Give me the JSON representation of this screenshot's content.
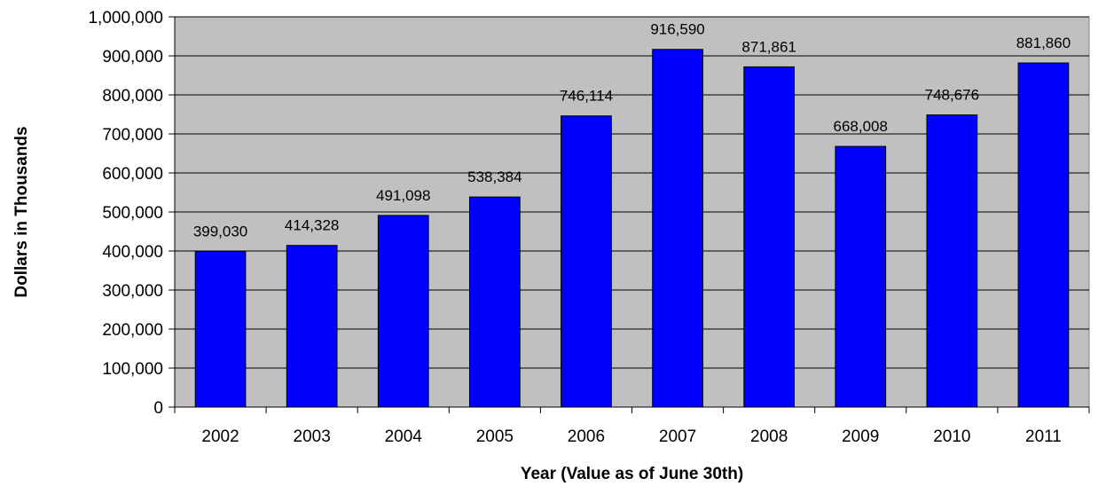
{
  "chart_data": {
    "type": "bar",
    "title": "",
    "xlabel": "Year (Value as of June 30th)",
    "ylabel": "Dollars in Thousands",
    "categories": [
      "2002",
      "2003",
      "2004",
      "2005",
      "2006",
      "2007",
      "2008",
      "2009",
      "2010",
      "2011"
    ],
    "values": [
      399030,
      414328,
      491098,
      538384,
      746114,
      916590,
      871861,
      668008,
      748676,
      881860
    ],
    "data_labels": [
      "399,030",
      "414,328",
      "491,098",
      "538,384",
      "746,114",
      "916,590",
      "871,861",
      "668,008",
      "748,676",
      "881,860"
    ],
    "ylim": [
      0,
      1000000
    ],
    "yticks": [
      0,
      100000,
      200000,
      300000,
      400000,
      500000,
      600000,
      700000,
      800000,
      900000,
      1000000
    ],
    "ytick_labels": [
      "0",
      "100,000",
      "200,000",
      "300,000",
      "400,000",
      "500,000",
      "600,000",
      "700,000",
      "800,000",
      "900,000",
      "1,000,000"
    ],
    "grid": true,
    "legend": "none",
    "colors": {
      "bar": "#0000ff",
      "plot_background": "#c0c0c0",
      "gridline": "#000000"
    }
  }
}
